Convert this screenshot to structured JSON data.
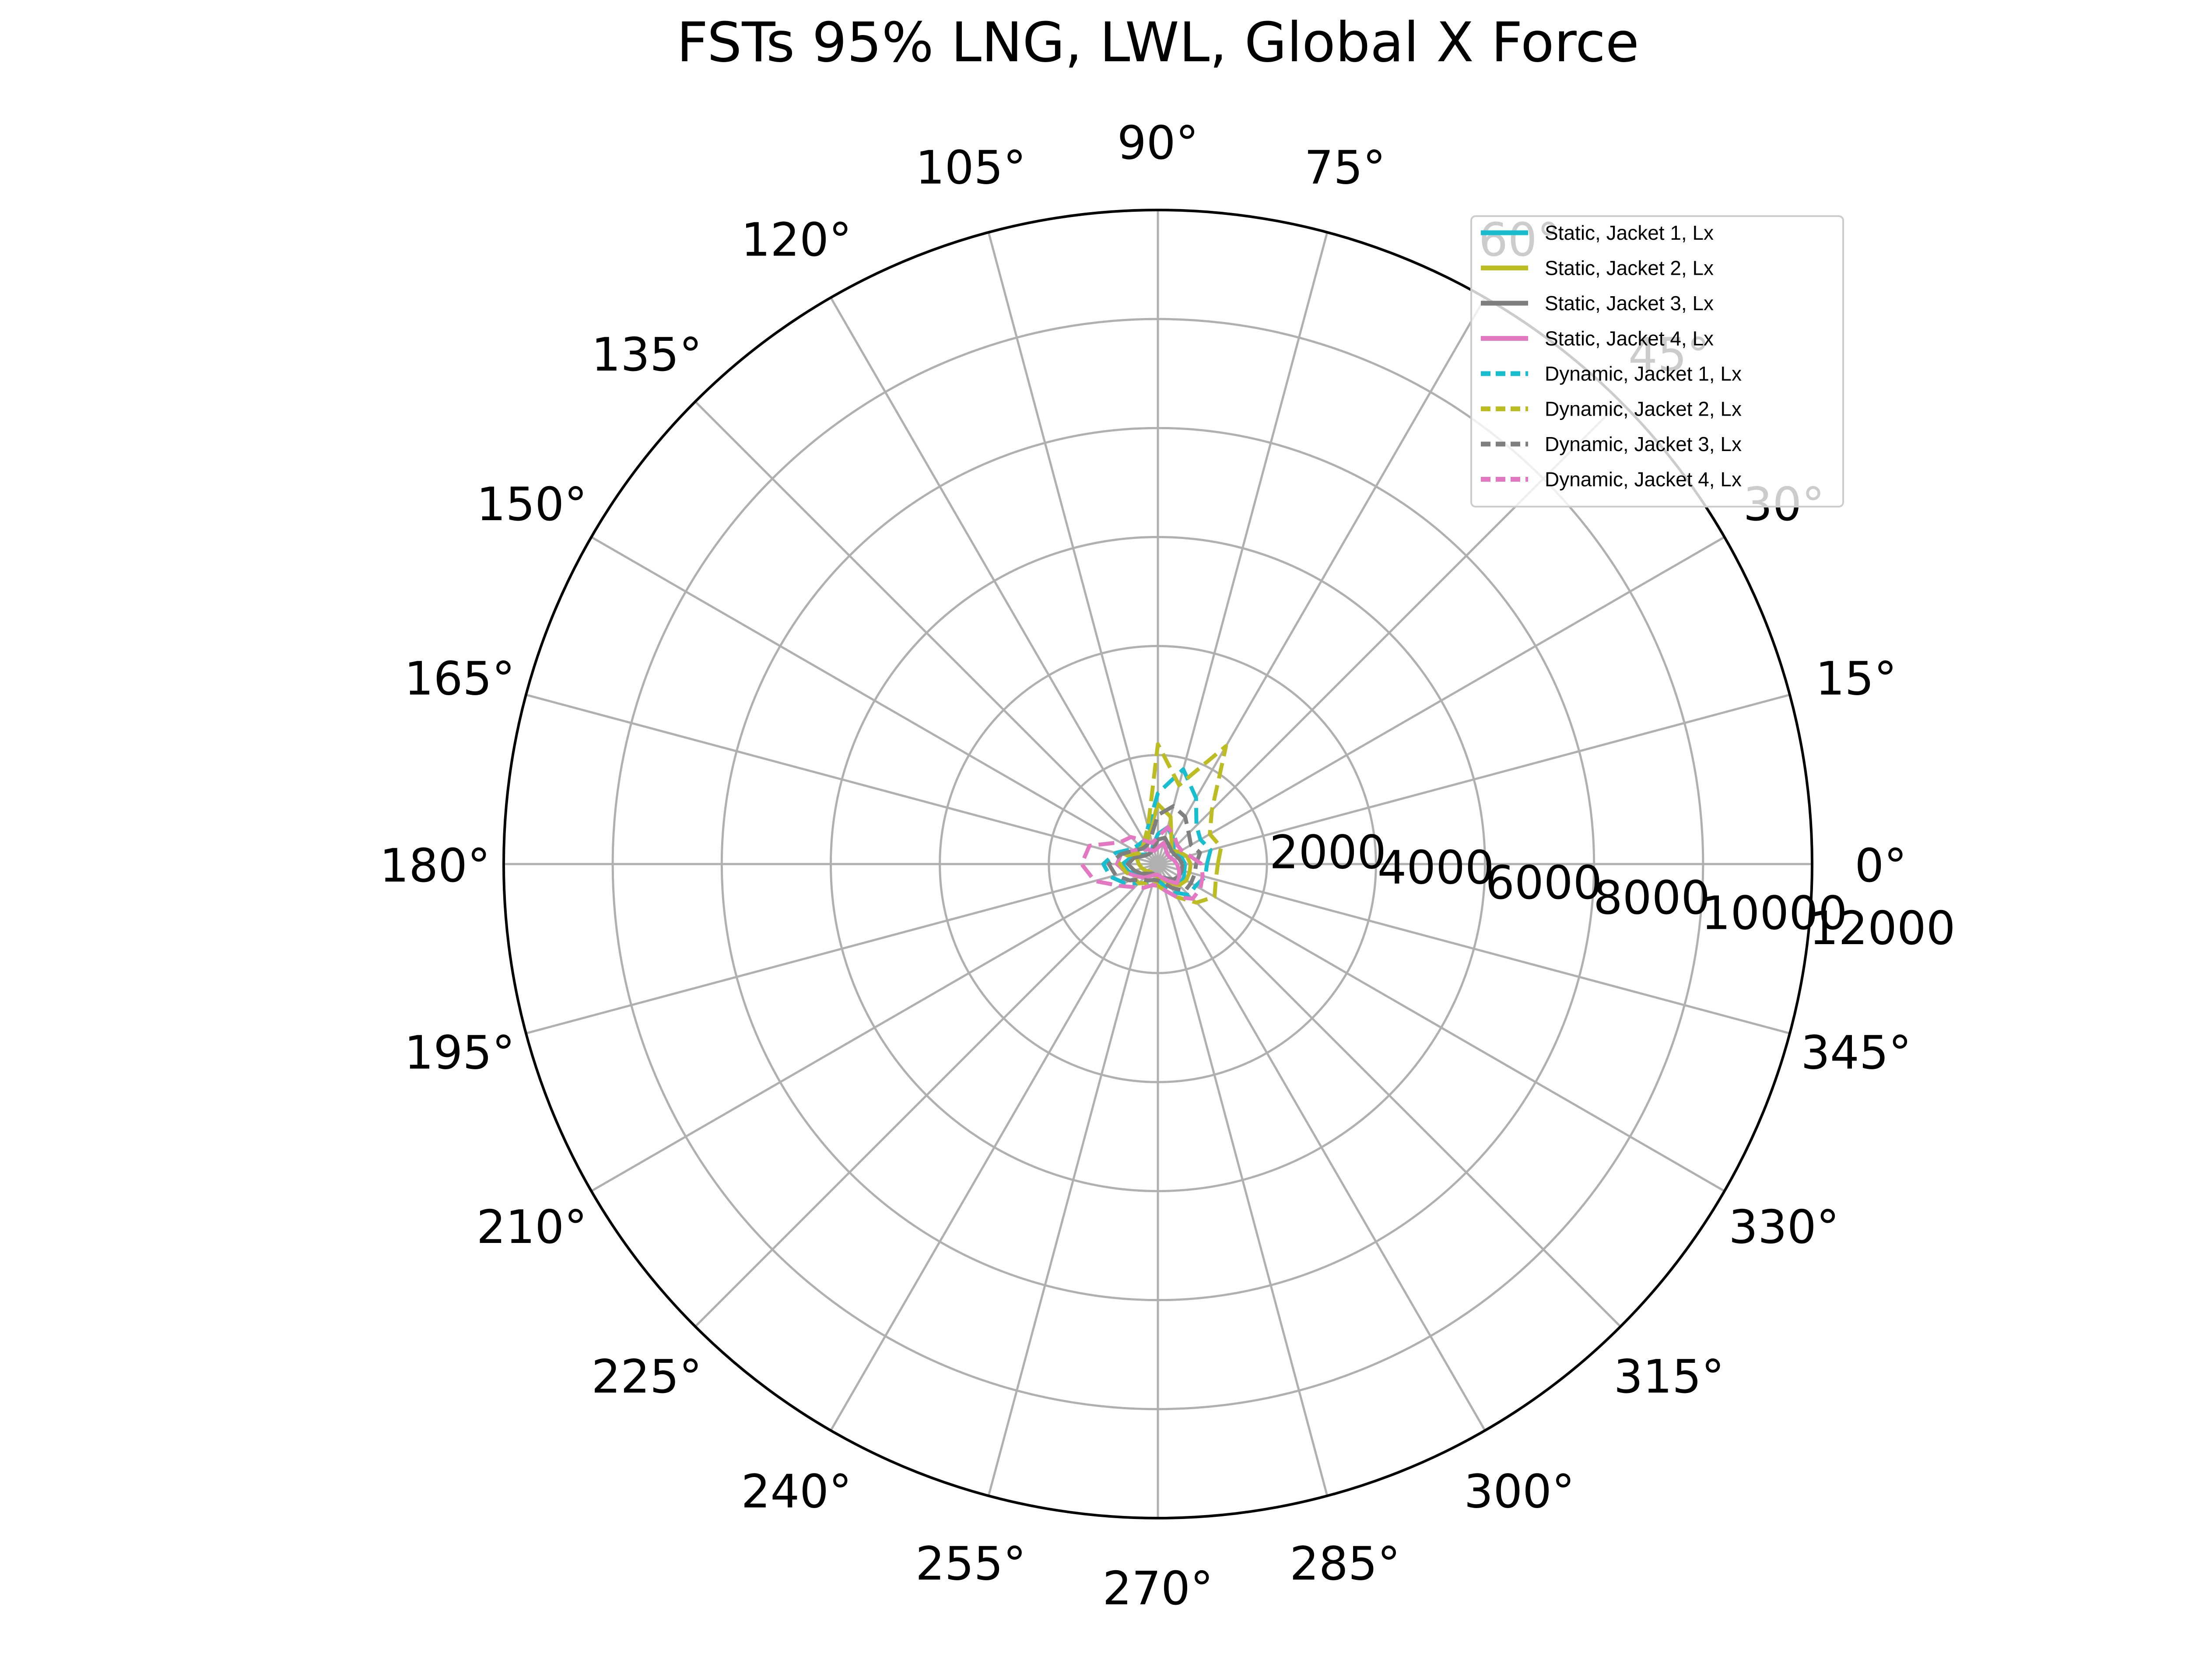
{
  "chart_data": {
    "type": "polar-line",
    "title": "FSTs 95% LNG, LWL, Global X Force",
    "theta_unit": "deg",
    "theta_ticks": [
      0,
      15,
      30,
      45,
      60,
      75,
      90,
      105,
      120,
      135,
      150,
      165,
      180,
      195,
      210,
      225,
      240,
      255,
      270,
      285,
      300,
      315,
      330,
      345
    ],
    "theta_tick_labels": [
      "0°",
      "15°",
      "30°",
      "45°",
      "60°",
      "75°",
      "90°",
      "105°",
      "120°",
      "135°",
      "150°",
      "165°",
      "180°",
      "195°",
      "210°",
      "225°",
      "240°",
      "255°",
      "270°",
      "285°",
      "300°",
      "315°",
      "330°",
      "345°"
    ],
    "r_ticks": [
      2000,
      4000,
      6000,
      8000,
      10000,
      12000
    ],
    "r_tick_labels": [
      "2000",
      "4000",
      "6000",
      "8000",
      "10000",
      "12000"
    ],
    "rlim": [
      0,
      12000
    ],
    "r_label_angle": -8,
    "grid": true,
    "legend": "top-right",
    "theta": [
      0,
      15,
      30,
      45,
      60,
      75,
      90,
      105,
      120,
      135,
      150,
      165,
      180,
      195,
      210,
      225,
      240,
      255,
      270,
      285,
      300,
      315,
      330,
      345,
      360
    ],
    "series": [
      {
        "name": "Static, Jacket 1, Lx",
        "color": "#17becf",
        "style": "solid",
        "r": [
          500,
          450,
          400,
          400,
          550,
          700,
          550,
          350,
          250,
          250,
          350,
          500,
          650,
          550,
          400,
          300,
          250,
          200,
          200,
          250,
          350,
          500,
          550,
          500,
          500
        ]
      },
      {
        "name": "Static, Jacket 2, Lx",
        "color": "#bcbd22",
        "style": "solid",
        "r": [
          600,
          550,
          450,
          350,
          500,
          900,
          1100,
          600,
          400,
          450,
          500,
          400,
          350,
          300,
          250,
          200,
          200,
          200,
          250,
          300,
          400,
          550,
          600,
          600,
          600
        ]
      },
      {
        "name": "Static, Jacket 3, Lx",
        "color": "#7f7f7f",
        "style": "solid",
        "r": [
          450,
          400,
          350,
          350,
          400,
          500,
          450,
          300,
          250,
          250,
          300,
          450,
          550,
          450,
          350,
          250,
          200,
          200,
          200,
          250,
          300,
          400,
          450,
          450,
          450
        ]
      },
      {
        "name": "Static, Jacket 4, Lx",
        "color": "#e377c2",
        "style": "solid",
        "r": [
          350,
          300,
          250,
          250,
          300,
          400,
          300,
          250,
          300,
          400,
          500,
          700,
          750,
          600,
          450,
          350,
          250,
          200,
          200,
          250,
          350,
          500,
          450,
          400,
          350
        ]
      },
      {
        "name": "Dynamic, Jacket 1, Lx",
        "color": "#17becf",
        "style": "dashed",
        "r": [
          900,
          1000,
          900,
          1000,
          1400,
          1800,
          1300,
          700,
          500,
          500,
          550,
          800,
          1000,
          900,
          700,
          500,
          400,
          300,
          300,
          400,
          600,
          800,
          800,
          900,
          900
        ]
      },
      {
        "name": "Dynamic, Jacket 2, Lx",
        "color": "#bcbd22",
        "style": "dashed",
        "r": [
          1100,
          1200,
          1100,
          1400,
          2500,
          1500,
          2200,
          700,
          500,
          400,
          400,
          600,
          700,
          600,
          500,
          500,
          400,
          300,
          400,
          500,
          700,
          1000,
          1200,
          1100,
          1100
        ]
      },
      {
        "name": "Dynamic, Jacket 3, Lx",
        "color": "#7f7f7f",
        "style": "dashed",
        "r": [
          700,
          800,
          700,
          800,
          1000,
          1100,
          900,
          500,
          400,
          400,
          500,
          700,
          900,
          800,
          600,
          400,
          350,
          300,
          300,
          350,
          500,
          700,
          700,
          700,
          700
        ]
      },
      {
        "name": "Dynamic, Jacket 4, Lx",
        "color": "#e377c2",
        "style": "dashed",
        "r": [
          800,
          600,
          500,
          500,
          600,
          700,
          500,
          400,
          500,
          700,
          800,
          1300,
          1400,
          1200,
          800,
          600,
          500,
          400,
          400,
          500,
          700,
          900,
          900,
          850,
          800
        ]
      }
    ]
  }
}
